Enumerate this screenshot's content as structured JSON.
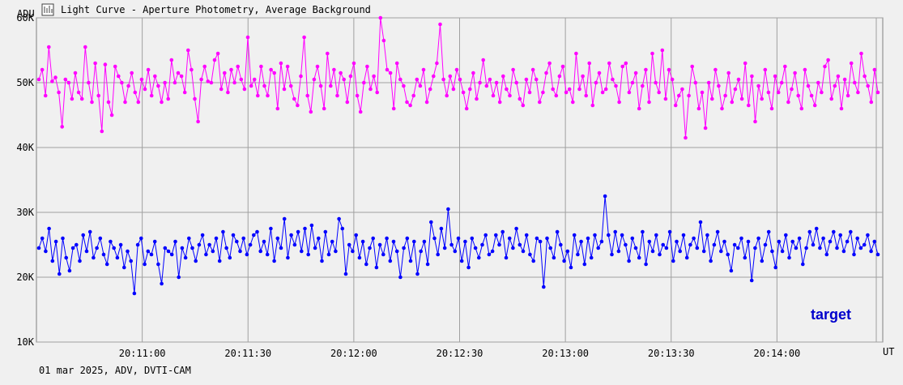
{
  "window": {
    "title": "Light Curve - Aperture Photometry, Average Background",
    "icon": "chart-icon"
  },
  "footer": {
    "text": "01 mar 2025, ADV, DVTI-CAM"
  },
  "chart_data": {
    "type": "line",
    "title": "",
    "xlabel": "UT",
    "ylabel": "ADU",
    "xlim": [
      "20:10:30",
      "20:14:30"
    ],
    "ylim": [
      10000,
      60000
    ],
    "y_ticks": [
      10000,
      20000,
      30000,
      40000,
      50000,
      60000
    ],
    "y_tick_labels": [
      "10K",
      "20K",
      "30K",
      "40K",
      "50K",
      "60K"
    ],
    "x_ticks": [
      "20:11:00",
      "20:11:30",
      "20:12:00",
      "20:12:30",
      "20:13:00",
      "20:13:30",
      "20:14:00"
    ],
    "grid": true,
    "background": "#f0f0f0",
    "grid_color": "#a0a0a0",
    "annotation": {
      "text": "target",
      "color": "#0000cc",
      "position": "bottom-right"
    },
    "series": [
      {
        "color": "#ff00ff",
        "values": [
          50500,
          52000,
          48000,
          55500,
          50200,
          50800,
          48500,
          43200,
          50500,
          50000,
          47500,
          51500,
          48500,
          47500,
          55500,
          50000,
          47000,
          53000,
          48000,
          42500,
          52800,
          47000,
          45000,
          52500,
          51000,
          50000,
          47000,
          49500,
          51500,
          48500,
          47000,
          50500,
          49000,
          52000,
          48000,
          51000,
          49500,
          47000,
          50000,
          47500,
          53500,
          50000,
          51500,
          51000,
          48500,
          55000,
          52000,
          47500,
          44000,
          50500,
          52500,
          50200,
          50000,
          53500,
          54500,
          49000,
          51500,
          48500,
          52000,
          50000,
          52500,
          50500,
          49000,
          57000,
          49500,
          50500,
          48000,
          52500,
          49500,
          48000,
          52000,
          51500,
          46000,
          53000,
          49000,
          52500,
          49500,
          47500,
          46500,
          51000,
          57000,
          48000,
          45500,
          50500,
          52500,
          49500,
          46000,
          54500,
          49500,
          52000,
          48000,
          51500,
          50500,
          47000,
          51000,
          53000,
          48000,
          45500,
          50000,
          52500,
          49000,
          51000,
          48500,
          60000,
          56500,
          52000,
          51500,
          46000,
          53000,
          50500,
          49500,
          47000,
          46500,
          48000,
          50500,
          49500,
          52000,
          47000,
          49000,
          51000,
          53000,
          59000,
          50500,
          48000,
          51000,
          49000,
          52000,
          50500,
          48500,
          46000,
          49000,
          51500,
          47500,
          50000,
          53500,
          49500,
          50500,
          48000,
          50000,
          47000,
          51000,
          49000,
          48000,
          52000,
          50000,
          47500,
          46500,
          50500,
          48500,
          52000,
          50500,
          47000,
          48500,
          51500,
          53000,
          49000,
          48000,
          51000,
          52500,
          48500,
          49000,
          47000,
          54500,
          49000,
          51000,
          48000,
          53000,
          46500,
          50000,
          51500,
          48500,
          49000,
          53000,
          50500,
          49500,
          47000,
          52500,
          53000,
          48500,
          50000,
          51500,
          46000,
          49500,
          52000,
          47000,
          54500,
          50000,
          48500,
          55000,
          47500,
          52000,
          50500,
          46500,
          48000,
          49000,
          41500,
          48000,
          52500,
          50000,
          46000,
          48500,
          43000,
          50000,
          47500,
          52000,
          49500,
          46000,
          48000,
          51500,
          47000,
          49000,
          50500,
          47500,
          53000,
          46500,
          51000,
          44000,
          49500,
          47500,
          52000,
          48500,
          46000,
          51000,
          48500,
          50000,
          52500,
          47000,
          49000,
          51500,
          48000,
          46000,
          52000,
          49500,
          48000,
          46500,
          50000,
          48500,
          52500,
          53500,
          47500,
          49500,
          51000,
          46000,
          50500,
          48000,
          53000,
          50000,
          48500,
          54500,
          51000,
          49500,
          47000,
          52000,
          48500
        ]
      },
      {
        "color": "#0000ff",
        "values": [
          24500,
          26000,
          24000,
          27500,
          22500,
          25500,
          20500,
          26000,
          23000,
          21000,
          24500,
          25000,
          22500,
          26500,
          24000,
          27000,
          23000,
          24500,
          26000,
          23500,
          22000,
          25500,
          24500,
          23000,
          25000,
          21500,
          24000,
          22500,
          17500,
          25000,
          26000,
          22000,
          24000,
          23500,
          25500,
          22000,
          19000,
          24500,
          24000,
          23500,
          25500,
          20000,
          24500,
          23000,
          26000,
          24500,
          22500,
          25000,
          26500,
          23500,
          25000,
          24000,
          26000,
          22500,
          27000,
          24500,
          23000,
          26500,
          25500,
          24000,
          26000,
          23500,
          25000,
          26500,
          27000,
          24000,
          25500,
          23500,
          27500,
          22500,
          26000,
          24500,
          29000,
          23000,
          26500,
          25000,
          27000,
          24000,
          27500,
          23500,
          28000,
          24500,
          26000,
          22500,
          27000,
          23500,
          25500,
          24000,
          29000,
          27500,
          20500,
          25000,
          24000,
          26500,
          23000,
          25500,
          22000,
          24500,
          26000,
          21500,
          25000,
          23500,
          26000,
          22500,
          25500,
          24000,
          20000,
          24500,
          26000,
          22500,
          25500,
          20500,
          24000,
          25500,
          22000,
          28500,
          26000,
          23500,
          27500,
          24500,
          30500,
          25000,
          24000,
          26000,
          22500,
          25500,
          21500,
          26000,
          24500,
          23000,
          25000,
          26500,
          23500,
          24000,
          26500,
          25000,
          27000,
          23000,
          26000,
          24500,
          27500,
          25000,
          24000,
          26500,
          23500,
          22500,
          26000,
          25500,
          18500,
          26000,
          24500,
          23000,
          27000,
          25000,
          22500,
          24000,
          21500,
          26500,
          23500,
          25500,
          22000,
          26000,
          23000,
          26500,
          24500,
          25500,
          32500,
          26500,
          23500,
          27000,
          24000,
          26500,
          25000,
          22500,
          26000,
          24500,
          23000,
          27000,
          22000,
          25500,
          24000,
          26500,
          23500,
          25000,
          24500,
          27000,
          22500,
          25500,
          24000,
          26500,
          23000,
          25000,
          26000,
          24500,
          28500,
          24000,
          26500,
          22500,
          25000,
          27000,
          24000,
          25500,
          23500,
          21000,
          25000,
          24500,
          26000,
          23000,
          25500,
          19500,
          24500,
          26000,
          22500,
          25000,
          27000,
          24000,
          21500,
          25500,
          24000,
          26500,
          23000,
          25500,
          24500,
          26000,
          22000,
          24500,
          27000,
          25000,
          27500,
          24500,
          26000,
          23500,
          25500,
          27000,
          24500,
          26500,
          24000,
          25500,
          27000,
          23500,
          26000,
          24500,
          25000,
          26500,
          24000,
          25500,
          23500
        ]
      }
    ]
  }
}
